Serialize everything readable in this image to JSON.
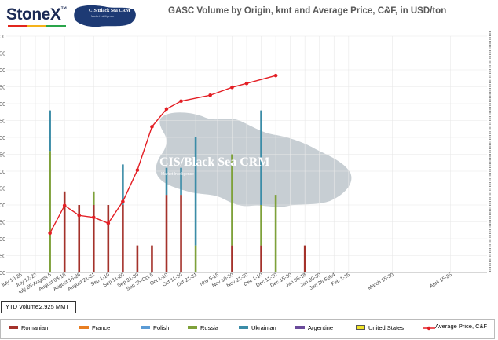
{
  "logo": {
    "brand": "StoneX",
    "tm": "™"
  },
  "badge": {
    "title": "CIS/Black Sea CRM",
    "subtitle": "Market Intelligence"
  },
  "watermark": {
    "title": "CIS/Black Sea CRM",
    "subtitle": "Market Intelligence"
  },
  "ytd": {
    "label": "YTD Volume:",
    "value": "2.925  MMT"
  },
  "colors": {
    "romanian": "#a4322b",
    "france": "#e87e22",
    "polish": "#5b9bd5",
    "russia": "#7ea13a",
    "ukrainian": "#3b8ca7",
    "argentine": "#6a4a9a",
    "united_states": "#f2e528",
    "price": "#e31e24",
    "map": "#c7ced3",
    "grid": "#e8e8e8"
  },
  "legend": [
    {
      "key": "romanian",
      "label": "Romanian",
      "kind": "box"
    },
    {
      "key": "france",
      "label": "France",
      "kind": "box"
    },
    {
      "key": "polish",
      "label": "Polish",
      "kind": "box"
    },
    {
      "key": "russia",
      "label": "Russia",
      "kind": "box"
    },
    {
      "key": "ukrainian",
      "label": "Ukrainian",
      "kind": "box"
    },
    {
      "key": "argentine",
      "label": "Argentine",
      "kind": "box"
    },
    {
      "key": "united_states",
      "label": "United States",
      "kind": "box"
    },
    {
      "key": "price",
      "label": "Average Price, C&F",
      "kind": "line"
    }
  ],
  "chart_data": {
    "type": "bar",
    "title": "GASC Volume by Origin, kmt and Average Price, C&F, in USD/ton",
    "categories": [
      "July 10-25",
      "July 12-22",
      "July 25-August 5",
      "August 08-18",
      "August 16-26",
      "August 21-31",
      "Sep 1-10",
      "Sep 11-20",
      "Sep 21-30",
      "Sep 25-Oct 5",
      "Oct 1-10",
      "Oct 11-20",
      "Oct 21-31",
      "Nov 5-15",
      "Nov 10-20",
      "Nov 21-30",
      "Dec 1-10",
      "Dec 11-20",
      "Dec 15-30",
      "Jan 08-18",
      "Jan 20-30",
      "Jan 26-Feb4",
      "Feb 1-15",
      "March 15-30",
      "April 15-25"
    ],
    "category_positions": [
      1,
      2,
      3,
      4,
      5,
      6,
      7,
      8,
      9,
      10,
      11,
      12,
      13,
      14.5,
      15.5,
      16.5,
      17.5,
      18.5,
      19.5,
      20.5,
      21.5,
      22.5,
      23.5,
      26.5,
      30.5
    ],
    "series": [
      {
        "key": "romanian",
        "values": [
          0,
          0,
          0,
          120,
          100,
          100,
          100,
          100,
          40,
          40,
          115,
          115,
          0,
          0,
          40,
          0,
          40,
          0,
          0,
          40,
          0,
          0,
          0,
          0,
          0
        ]
      },
      {
        "key": "russia",
        "values": [
          0,
          0,
          180,
          0,
          0,
          20,
          0,
          0,
          0,
          0,
          0,
          0,
          40,
          0,
          135,
          0,
          60,
          115,
          0,
          0,
          0,
          0,
          0,
          0,
          0
        ]
      },
      {
        "key": "ukrainian",
        "values": [
          0,
          0,
          60,
          0,
          0,
          0,
          0,
          60,
          0,
          0,
          40,
          40,
          160,
          0,
          0,
          0,
          140,
          0,
          0,
          0,
          0,
          0,
          0,
          0,
          0
        ]
      }
    ],
    "price_line": {
      "x": [
        3,
        4,
        5,
        6,
        7,
        8,
        9,
        10,
        11,
        12,
        14,
        15.5,
        16.5,
        18.5
      ],
      "y": [
        205,
        219,
        214,
        213,
        210,
        221,
        237,
        259,
        268,
        272,
        275,
        279,
        281,
        285
      ]
    },
    "y_left_ticks": [
      "00",
      "50",
      "00",
      "50",
      "00",
      "50",
      "00",
      "50",
      "00",
      "50",
      "00",
      "50",
      "00",
      "50",
      "00"
    ],
    "yleft_lim": [
      0,
      350
    ],
    "yright_lim": [
      185,
      305
    ],
    "xlim": [
      0,
      33
    ]
  }
}
